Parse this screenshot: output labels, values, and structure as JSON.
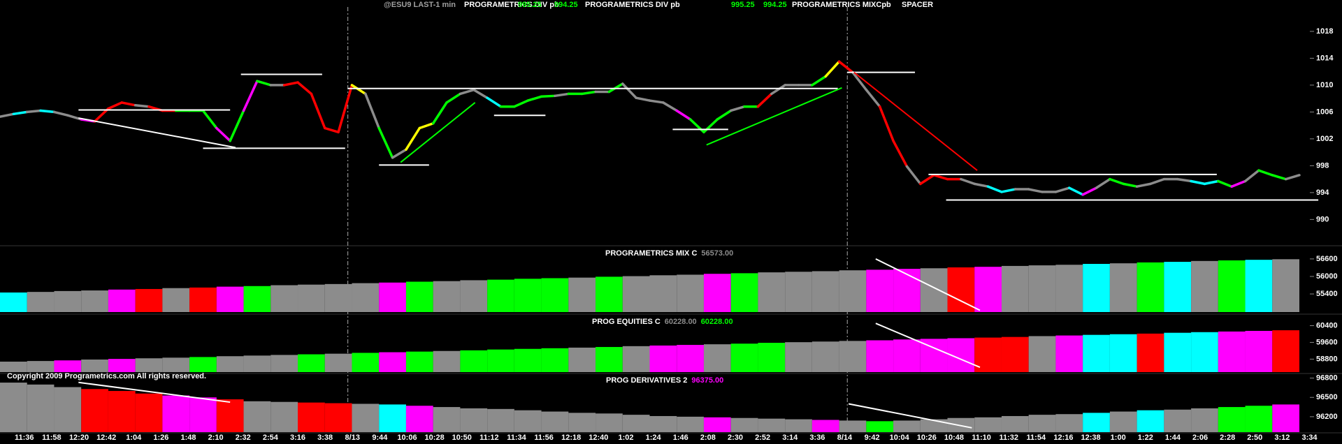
{
  "header": {
    "symbol": "@ESU9 LAST-1 min",
    "items": [
      {
        "label": "PROGRAMETRICS DIV pb",
        "values": [
          995.25,
          994.25
        ]
      },
      {
        "label": "PROGRAMETRICS DIV pb",
        "values": [
          995.25,
          994.25
        ]
      },
      {
        "label": "PROGRAMETRICS MIXCpb"
      },
      {
        "label": "SPACER"
      }
    ]
  },
  "copyright": "Copyright 2009 Programetrics.com All rights reserved.",
  "time_axis": [
    "11:36",
    "11:58",
    "12:20",
    "12:42",
    "1:04",
    "1:26",
    "1:48",
    "2:10",
    "2:32",
    "2:54",
    "3:16",
    "3:38",
    "8/13",
    "9:44",
    "10:06",
    "10:28",
    "10:50",
    "11:12",
    "11:34",
    "11:56",
    "12:18",
    "12:40",
    "1:02",
    "1:24",
    "1:46",
    "2:08",
    "2:30",
    "2:52",
    "3:14",
    "3:36",
    "8/14",
    "9:42",
    "10:04",
    "10:26",
    "10:48",
    "11:10",
    "11:32",
    "11:54",
    "12:16",
    "12:38",
    "1:00",
    "1:22",
    "1:44",
    "2:06",
    "2:28",
    "2:50",
    "3:12",
    "3:34"
  ],
  "chart_data": [
    {
      "type": "line",
      "xlim": [
        0,
        96
      ],
      "ylim": [
        986.4,
        1020.8
      ],
      "yticks": [
        1018,
        1014,
        1010,
        1006,
        1002,
        998,
        994,
        990
      ],
      "session_breaks": [
        25.7,
        62.6
      ],
      "values": [
        1005.3,
        1005.7,
        1006,
        1006.2,
        1006,
        1005.5,
        1004.9,
        1004.6,
        1006.5,
        1007.4,
        1007,
        1006.8,
        1006.2,
        1006.2,
        1006.2,
        1006.2,
        1003.6,
        1001.7,
        1006.2,
        1010.6,
        1010,
        1010,
        1010.4,
        1008.7,
        1003.6,
        1003,
        1010,
        1008.7,
        1003.6,
        999.2,
        1000.4,
        1003.6,
        1004.3,
        1007.4,
        1008.7,
        1009.3,
        1008.1,
        1006.8,
        1006.8,
        1007.7,
        1008.3,
        1008.4,
        1008.7,
        1008.7,
        1009,
        1009,
        1010.2,
        1008.1,
        1007.7,
        1007.4,
        1006.2,
        1004.9,
        1003,
        1004.9,
        1006.2,
        1006.8,
        1006.8,
        1008.7,
        1010,
        1010,
        1010,
        1011.3,
        1013.5,
        1011.9,
        1009.3,
        1006.8,
        1001.7,
        997.9,
        995.3,
        996.6,
        996,
        996,
        995.3,
        994.9,
        994.1,
        994.5,
        994.5,
        994.1,
        994.1,
        994.7,
        993.7,
        994.7,
        996,
        995.3,
        994.9,
        995.3,
        996,
        996,
        995.7,
        995.3,
        995.7,
        994.9,
        995.7,
        997.3,
        996.6,
        996,
        996.6
      ],
      "colors": [
        "#00ffff",
        "#8c8c8c",
        "#00ffff",
        "#8c8c8c",
        "#00ffff",
        "#8c8c8c",
        "#8c8c8c",
        "#ff00ff",
        "#ff0000",
        "#ff0000",
        "#ff0000",
        "#8c8c8c",
        "#ff0000",
        "#ff0000",
        "#00ff00",
        "#00ff00",
        "#00ff00",
        "#ff00ff",
        "#00ff00",
        "#ff00ff",
        "#00ff00",
        "#8c8c8c",
        "#ff0000",
        "#ff0000",
        "#ff0000",
        "#ff0000",
        "#ff0000",
        "#ffff00",
        "#8c8c8c",
        "#00ff00",
        "#8c8c8c",
        "#ffff00",
        "#ffff00",
        "#00ff00",
        "#00ff00",
        "#8c8c8c",
        "#8c8c8c",
        "#00ffff",
        "#00ff00",
        "#00ff00",
        "#00ff00",
        "#00ff00",
        "#8c8c8c",
        "#00ff00",
        "#00ff00",
        "#8c8c8c",
        "#00ff00",
        "#8c8c8c",
        "#8c8c8c",
        "#8c8c8c",
        "#8c8c8c",
        "#ff00ff",
        "#00ff00",
        "#00ff00",
        "#00ff00",
        "#8c8c8c",
        "#00ff00",
        "#ff0000",
        "#8c8c8c",
        "#8c8c8c",
        "#8c8c8c",
        "#00ff00",
        "#ffff00",
        "#ff0000",
        "#8c8c8c",
        "#8c8c8c",
        "#ff0000",
        "#ff0000",
        "#8c8c8c",
        "#ff0000",
        "#ff0000",
        "#ff0000",
        "#8c8c8c",
        "#8c8c8c",
        "#00ffff",
        "#00ffff",
        "#8c8c8c",
        "#8c8c8c",
        "#8c8c8c",
        "#8c8c8c",
        "#00ffff",
        "#ff00ff",
        "#8c8c8c",
        "#00ff00",
        "#00ff00",
        "#8c8c8c",
        "#8c8c8c",
        "#8c8c8c",
        "#8c8c8c",
        "#00ffff",
        "#00ffff",
        "#00ff00",
        "#ff00ff",
        "#8c8c8c",
        "#00ff00",
        "#00ff00",
        "#8c8c8c"
      ],
      "lines": [
        {
          "x": [
            5.8,
            17
          ],
          "y": [
            1006.3,
            1006.3
          ],
          "color": "#ffffff"
        },
        {
          "x": [
            15,
            25.5
          ],
          "y": [
            1000.6,
            1000.6
          ],
          "color": "#ffffff"
        },
        {
          "x": [
            17.8,
            23.8
          ],
          "y": [
            1011.6,
            1011.6
          ],
          "color": "#ffffff"
        },
        {
          "x": [
            5.8,
            17.4
          ],
          "y": [
            1005.1,
            1000.7
          ],
          "color": "#ffffff"
        },
        {
          "x": [
            25.7,
            61.9
          ],
          "y": [
            1009.5,
            1009.5
          ],
          "color": "#ffffff"
        },
        {
          "x": [
            28,
            31.7
          ],
          "y": [
            998.1,
            998.1
          ],
          "color": "#ffffff"
        },
        {
          "x": [
            29.6,
            35.1
          ],
          "y": [
            998.5,
            1007.4
          ],
          "color": "#00ff00"
        },
        {
          "x": [
            36.5,
            40.3
          ],
          "y": [
            1005.5,
            1005.5
          ],
          "color": "#ffffff"
        },
        {
          "x": [
            49.7,
            53.8
          ],
          "y": [
            1003.4,
            1003.4
          ],
          "color": "#ffffff"
        },
        {
          "x": [
            52.2,
            62.2
          ],
          "y": [
            1001.1,
            1009.6
          ],
          "color": "#00ff00"
        },
        {
          "x": [
            62.6,
            67.6
          ],
          "y": [
            1011.9,
            1011.9
          ],
          "color": "#ffffff"
        },
        {
          "x": [
            63.1,
            72.2
          ],
          "y": [
            1011.9,
            997.3
          ],
          "color": "#ff0000"
        },
        {
          "x": [
            68.6,
            89.9
          ],
          "y": [
            996.7,
            996.7
          ],
          "color": "#ffffff"
        },
        {
          "x": [
            69.9,
            97.4
          ],
          "y": [
            992.9,
            992.9
          ],
          "color": "#ffffff"
        }
      ]
    },
    {
      "type": "bar",
      "title": "PROGRAMETRICS MIX C",
      "readouts": [
        {
          "value": 56573,
          "label": "56573.00",
          "color": "#8c8c8c"
        }
      ],
      "xlim": [
        0,
        96
      ],
      "ylim": [
        54780,
        56980
      ],
      "yticks": [
        56600,
        56000,
        55400
      ],
      "values": [
        55450,
        55470,
        55500,
        55520,
        55550,
        55570,
        55600,
        55620,
        55650,
        55670,
        55700,
        55720,
        55740,
        55770,
        55790,
        55820,
        55840,
        55870,
        55890,
        55920,
        55940,
        55960,
        55990,
        56010,
        56040,
        56060,
        56090,
        56110,
        56140,
        56160,
        56180,
        56210,
        56230,
        56260,
        56280,
        56310,
        56330,
        56360,
        56380,
        56400,
        56430,
        56450,
        56480,
        56500,
        56530,
        56550,
        56570,
        56590
      ],
      "colors": [
        "#00ffff",
        "#8c8c8c",
        "#8c8c8c",
        "#8c8c8c",
        "#ff00ff",
        "#ff0000",
        "#8c8c8c",
        "#ff0000",
        "#ff00ff",
        "#00ff00",
        "#8c8c8c",
        "#8c8c8c",
        "#8c8c8c",
        "#8c8c8c",
        "#ff00ff",
        "#00ff00",
        "#8c8c8c",
        "#8c8c8c",
        "#00ff00",
        "#00ff00",
        "#00ff00",
        "#8c8c8c",
        "#00ff00",
        "#8c8c8c",
        "#8c8c8c",
        "#8c8c8c",
        "#ff00ff",
        "#00ff00",
        "#8c8c8c",
        "#8c8c8c",
        "#8c8c8c",
        "#8c8c8c",
        "#ff00ff",
        "#ff00ff",
        "#8c8c8c",
        "#ff0000",
        "#ff00ff",
        "#8c8c8c",
        "#8c8c8c",
        "#8c8c8c",
        "#00ffff",
        "#8c8c8c",
        "#00ff00",
        "#00ffff",
        "#8c8c8c",
        "#00ff00",
        "#00ffff",
        "#8c8c8c"
      ],
      "lines": [
        {
          "x": [
            64.7,
            72.4
          ],
          "y": [
            56600,
            54840
          ],
          "color": "#ffffff"
        }
      ]
    },
    {
      "type": "bar",
      "title": "PROG EQUITIES C",
      "readouts": [
        {
          "value": 60228,
          "label": "60228.00",
          "color": "#8c8c8c"
        },
        {
          "value": 60228,
          "label": "60228.00",
          "color": "#00ff00"
        }
      ],
      "xlim": [
        0,
        96
      ],
      "ylim": [
        58180,
        60850
      ],
      "yticks": [
        60400,
        59600,
        58800
      ],
      "values": [
        58680,
        58710,
        58740,
        58780,
        58810,
        58840,
        58870,
        58900,
        58940,
        58970,
        59000,
        59030,
        59060,
        59100,
        59130,
        59160,
        59190,
        59220,
        59260,
        59290,
        59320,
        59350,
        59380,
        59420,
        59450,
        59480,
        59510,
        59540,
        59580,
        59610,
        59640,
        59670,
        59700,
        59740,
        59770,
        59800,
        59830,
        59860,
        59900,
        59930,
        59960,
        59990,
        60020,
        60060,
        60090,
        60120,
        60150,
        60180
      ],
      "colors": [
        "#8c8c8c",
        "#8c8c8c",
        "#ff00ff",
        "#8c8c8c",
        "#ff00ff",
        "#8c8c8c",
        "#8c8c8c",
        "#00ff00",
        "#8c8c8c",
        "#8c8c8c",
        "#8c8c8c",
        "#00ff00",
        "#8c8c8c",
        "#00ff00",
        "#ff00ff",
        "#00ff00",
        "#8c8c8c",
        "#00ff00",
        "#00ff00",
        "#00ff00",
        "#00ff00",
        "#8c8c8c",
        "#00ff00",
        "#8c8c8c",
        "#ff00ff",
        "#ff00ff",
        "#8c8c8c",
        "#00ff00",
        "#00ff00",
        "#8c8c8c",
        "#8c8c8c",
        "#8c8c8c",
        "#ff00ff",
        "#ff00ff",
        "#ff00ff",
        "#ff00ff",
        "#ff0000",
        "#ff0000",
        "#8c8c8c",
        "#ff00ff",
        "#00ffff",
        "#00ffff",
        "#ff0000",
        "#00ffff",
        "#00ffff",
        "#ff00ff",
        "#ff00ff",
        "#ff0000"
      ],
      "lines": [
        {
          "x": [
            64.7,
            72.4
          ],
          "y": [
            60510,
            58410
          ],
          "color": "#ffffff"
        }
      ]
    },
    {
      "type": "bar",
      "title": "PROG DERIVATIVES 2",
      "readouts": [
        {
          "value": 96375,
          "label": "96375.00",
          "color": "#ff00ff"
        }
      ],
      "xlim": [
        0,
        96
      ],
      "ylim": [
        95960,
        96850
      ],
      "yticks": [
        96800,
        96500,
        96200
      ],
      "values": [
        96730,
        96700,
        96660,
        96630,
        96600,
        96560,
        96530,
        96500,
        96470,
        96440,
        96430,
        96420,
        96410,
        96400,
        96390,
        96370,
        96350,
        96330,
        96320,
        96300,
        96280,
        96260,
        96250,
        96230,
        96210,
        96200,
        96190,
        96180,
        96170,
        96160,
        96150,
        96140,
        96130,
        96140,
        96160,
        96180,
        96190,
        96210,
        96230,
        96240,
        96260,
        96280,
        96300,
        96310,
        96330,
        96350,
        96370,
        96390
      ],
      "colors": [
        "#8c8c8c",
        "#8c8c8c",
        "#8c8c8c",
        "#ff0000",
        "#ff0000",
        "#ff0000",
        "#ff00ff",
        "#ff00ff",
        "#ff0000",
        "#8c8c8c",
        "#8c8c8c",
        "#ff0000",
        "#ff0000",
        "#8c8c8c",
        "#00ffff",
        "#ff00ff",
        "#8c8c8c",
        "#8c8c8c",
        "#8c8c8c",
        "#8c8c8c",
        "#8c8c8c",
        "#8c8c8c",
        "#8c8c8c",
        "#8c8c8c",
        "#8c8c8c",
        "#8c8c8c",
        "#ff00ff",
        "#8c8c8c",
        "#8c8c8c",
        "#8c8c8c",
        "#ff00ff",
        "#8c8c8c",
        "#00ff00",
        "#8c8c8c",
        "#8c8c8c",
        "#8c8c8c",
        "#8c8c8c",
        "#8c8c8c",
        "#8c8c8c",
        "#8c8c8c",
        "#00ffff",
        "#8c8c8c",
        "#00ffff",
        "#8c8c8c",
        "#8c8c8c",
        "#00ff00",
        "#00ff00",
        "#ff00ff"
      ],
      "lines": [
        {
          "x": [
            5.8,
            17
          ],
          "y": [
            96733,
            96426
          ],
          "color": "#ffffff"
        },
        {
          "x": [
            62.7,
            71.8
          ],
          "y": [
            96400,
            96027
          ],
          "color": "#ffffff"
        }
      ]
    }
  ]
}
